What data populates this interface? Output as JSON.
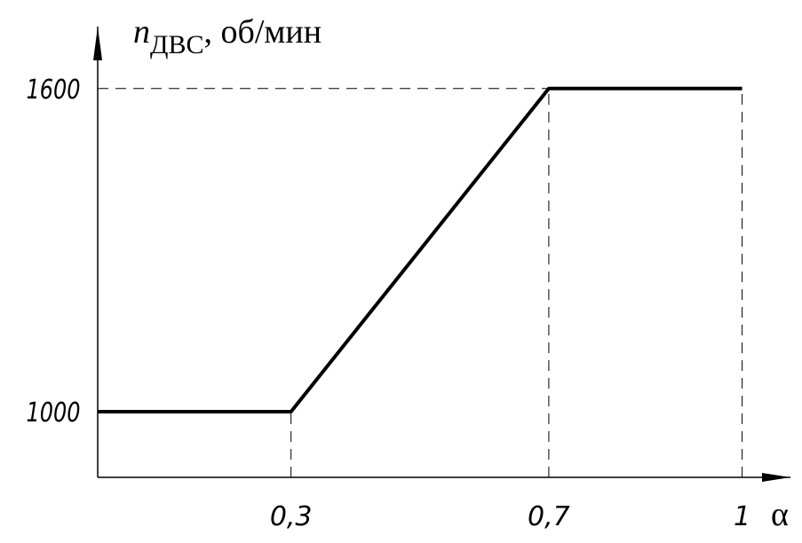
{
  "chart_data": {
    "type": "line",
    "ylabel": {
      "symbol": "n",
      "subscript": "ДВС",
      "unit": ", об/мин"
    },
    "xlabel": "α",
    "x": [
      0,
      0.3,
      0.7,
      1
    ],
    "series": [
      {
        "color": "#000000",
        "values": [
          1000,
          1000,
          1600,
          1600
        ]
      }
    ],
    "xlim": [
      0,
      1.075
    ],
    "ylim": [
      878,
      1715
    ],
    "xticks": [
      {
        "value": 0.3,
        "label": "0,3"
      },
      {
        "value": 0.7,
        "label": "0,7"
      },
      1
    ],
    "yticks": [
      1000,
      1600
    ],
    "grid": "dashed"
  }
}
